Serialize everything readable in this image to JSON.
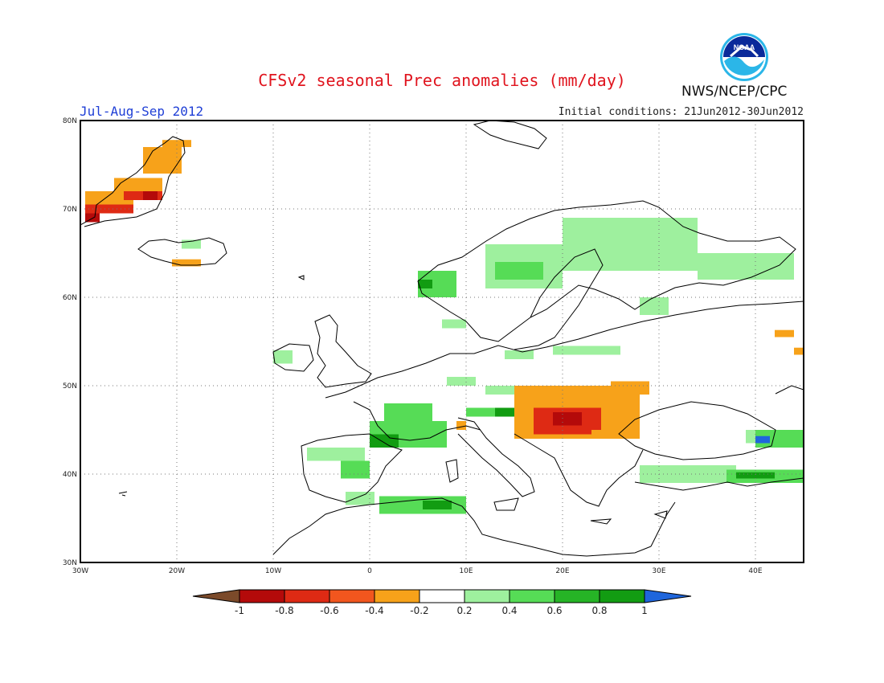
{
  "header": {
    "title": "CFSv2 seasonal Prec anomalies (mm/day)",
    "period": "Jul-Aug-Sep 2012",
    "initial_conditions": "Initial conditions: 21Jun2012-30Jun2012",
    "org": "NWS/NCEP/CPC",
    "logo_text": "NOAA"
  },
  "axes": {
    "lat_labels": [
      "80N",
      "70N",
      "60N",
      "50N",
      "40N",
      "30N"
    ],
    "lon_labels": [
      "30W",
      "20W",
      "10W",
      "0",
      "10E",
      "20E",
      "30E",
      "40E"
    ]
  },
  "colorbar": {
    "labels": [
      "-1",
      "-0.8",
      "-0.6",
      "-0.4",
      "-0.2",
      "0.2",
      "0.4",
      "0.6",
      "0.8",
      "1"
    ],
    "colors": [
      "#7b4a2a",
      "#b40a0a",
      "#de2a14",
      "#f2561e",
      "#f7a21a",
      "#ffffff",
      "#9ef09e",
      "#56dc56",
      "#26b426",
      "#129c12",
      "#1f66dc"
    ]
  },
  "map_data": {
    "extent": {
      "lon": [
        -30,
        45
      ],
      "lat": [
        30,
        80
      ]
    },
    "anomaly_cells": [
      {
        "lon": -29.5,
        "lat": 70.5,
        "w": 5,
        "h": 1.5,
        "color": "#f7a21a"
      },
      {
        "lon": -29.5,
        "lat": 69.5,
        "w": 5,
        "h": 1.0,
        "color": "#de2a14"
      },
      {
        "lon": -29.5,
        "lat": 68.5,
        "w": 1.5,
        "h": 1.0,
        "color": "#b40a0a"
      },
      {
        "lon": -26.5,
        "lat": 72.0,
        "w": 5,
        "h": 1.5,
        "color": "#f7a21a"
      },
      {
        "lon": -25.5,
        "lat": 71.0,
        "w": 4,
        "h": 1.0,
        "color": "#de2a14"
      },
      {
        "lon": -23.5,
        "lat": 71.0,
        "w": 1.5,
        "h": 1.0,
        "color": "#b40a0a"
      },
      {
        "lon": -23.5,
        "lat": 74.0,
        "w": 4,
        "h": 3.0,
        "color": "#f7a21a"
      },
      {
        "lon": -21.5,
        "lat": 77.0,
        "w": 3,
        "h": 0.8,
        "color": "#f7a21a"
      },
      {
        "lon": -20.5,
        "lat": 63.5,
        "w": 3,
        "h": 0.8,
        "color": "#f7a21a"
      },
      {
        "lon": -19.5,
        "lat": 65.5,
        "w": 2,
        "h": 1.0,
        "color": "#9ef09e"
      },
      {
        "lon": 5.0,
        "lat": 60.0,
        "w": 4,
        "h": 3.0,
        "color": "#56dc56"
      },
      {
        "lon": 5.0,
        "lat": 61.0,
        "w": 1.5,
        "h": 1.0,
        "color": "#129c12"
      },
      {
        "lon": 12.0,
        "lat": 61.0,
        "w": 8,
        "h": 5.0,
        "color": "#9ef09e"
      },
      {
        "lon": 13.0,
        "lat": 62.0,
        "w": 5,
        "h": 2.0,
        "color": "#56dc56"
      },
      {
        "lon": 20.0,
        "lat": 63.0,
        "w": 14,
        "h": 6.0,
        "color": "#9ef09e"
      },
      {
        "lon": 34.0,
        "lat": 62.0,
        "w": 10,
        "h": 3.0,
        "color": "#9ef09e"
      },
      {
        "lon": 28.0,
        "lat": 58.0,
        "w": 3,
        "h": 2.0,
        "color": "#9ef09e"
      },
      {
        "lon": 7.5,
        "lat": 56.5,
        "w": 2.5,
        "h": 1.0,
        "color": "#9ef09e"
      },
      {
        "lon": -10.0,
        "lat": 52.5,
        "w": 2,
        "h": 1.5,
        "color": "#9ef09e"
      },
      {
        "lon": 14.0,
        "lat": 53.0,
        "w": 3,
        "h": 1.0,
        "color": "#9ef09e"
      },
      {
        "lon": 19.0,
        "lat": 53.5,
        "w": 7,
        "h": 1.0,
        "color": "#9ef09e"
      },
      {
        "lon": 8.0,
        "lat": 50.0,
        "w": 3,
        "h": 1.0,
        "color": "#9ef09e"
      },
      {
        "lon": 12.0,
        "lat": 49.0,
        "w": 4,
        "h": 1.0,
        "color": "#9ef09e"
      },
      {
        "lon": 1.5,
        "lat": 46.0,
        "w": 5,
        "h": 2.0,
        "color": "#56dc56"
      },
      {
        "lon": 0.0,
        "lat": 43.0,
        "w": 8,
        "h": 3.0,
        "color": "#56dc56"
      },
      {
        "lon": 0.0,
        "lat": 43.0,
        "w": 3,
        "h": 1.5,
        "color": "#129c12"
      },
      {
        "lon": -6.5,
        "lat": 41.5,
        "w": 6,
        "h": 1.5,
        "color": "#9ef09e"
      },
      {
        "lon": -3.0,
        "lat": 39.5,
        "w": 3,
        "h": 2.0,
        "color": "#56dc56"
      },
      {
        "lon": 10.0,
        "lat": 46.5,
        "w": 6,
        "h": 1.0,
        "color": "#56dc56"
      },
      {
        "lon": 13.0,
        "lat": 46.5,
        "w": 3,
        "h": 1.0,
        "color": "#129c12"
      },
      {
        "lon": 9.0,
        "lat": 45.0,
        "w": 1,
        "h": 1.0,
        "color": "#f7a21a"
      },
      {
        "lon": 15.0,
        "lat": 44.0,
        "w": 13,
        "h": 6.0,
        "color": "#f7a21a"
      },
      {
        "lon": 17.0,
        "lat": 44.5,
        "w": 7,
        "h": 3.0,
        "color": "#de2a14"
      },
      {
        "lon": 19.0,
        "lat": 45.5,
        "w": 3,
        "h": 1.5,
        "color": "#b40a0a"
      },
      {
        "lon": 25.0,
        "lat": 49.0,
        "w": 4,
        "h": 1.5,
        "color": "#f7a21a"
      },
      {
        "lon": 23.0,
        "lat": 44.0,
        "w": 2,
        "h": 1.0,
        "color": "#f7a21a"
      },
      {
        "lon": -2.5,
        "lat": 36.5,
        "w": 3,
        "h": 1.5,
        "color": "#9ef09e"
      },
      {
        "lon": 1.0,
        "lat": 35.5,
        "w": 9,
        "h": 2.0,
        "color": "#56dc56"
      },
      {
        "lon": 5.5,
        "lat": 36.0,
        "w": 3,
        "h": 1.0,
        "color": "#129c12"
      },
      {
        "lon": 39.0,
        "lat": 43.5,
        "w": 3,
        "h": 1.5,
        "color": "#9ef09e"
      },
      {
        "lon": 40.0,
        "lat": 43.0,
        "w": 5,
        "h": 2.0,
        "color": "#56dc56"
      },
      {
        "lon": 40.0,
        "lat": 43.5,
        "w": 1.5,
        "h": 0.8,
        "color": "#1f66dc"
      },
      {
        "lon": 28.0,
        "lat": 39.0,
        "w": 10,
        "h": 2.0,
        "color": "#9ef09e"
      },
      {
        "lon": 37.0,
        "lat": 39.0,
        "w": 8,
        "h": 1.5,
        "color": "#56dc56"
      },
      {
        "lon": 38.0,
        "lat": 39.5,
        "w": 4,
        "h": 0.7,
        "color": "#129c12"
      },
      {
        "lon": 42.0,
        "lat": 55.5,
        "w": 2,
        "h": 0.8,
        "color": "#f7a21a"
      },
      {
        "lon": 44.0,
        "lat": 53.5,
        "w": 1,
        "h": 0.8,
        "color": "#f7a21a"
      }
    ]
  }
}
